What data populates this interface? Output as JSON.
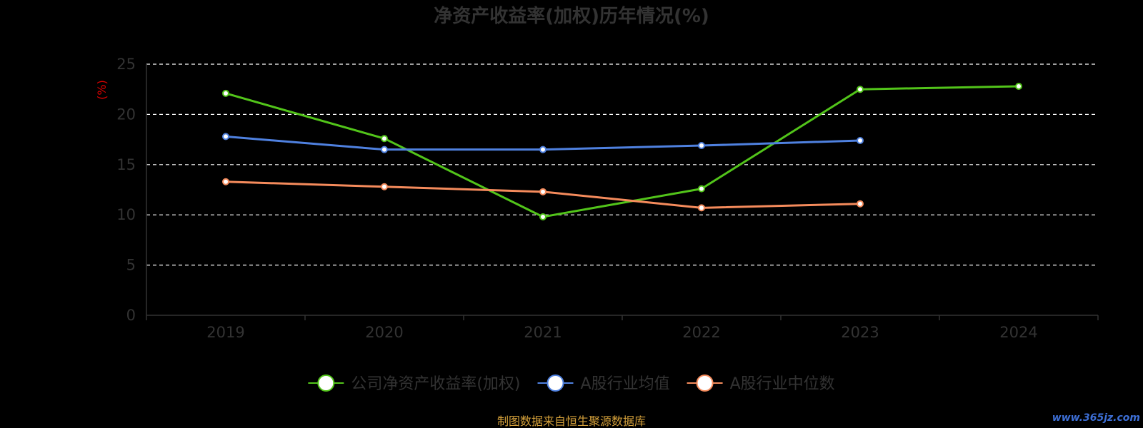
{
  "chart_data": {
    "type": "line",
    "title": "净资产收益率(加权)历年情况(%)",
    "ylabel": "(%)",
    "categories": [
      "2019",
      "2020",
      "2021",
      "2022",
      "2023",
      "2024"
    ],
    "ylim": [
      0,
      25
    ],
    "yticks": [
      0,
      5,
      10,
      15,
      20,
      25
    ],
    "grid": true,
    "legend_position": "bottom",
    "series": [
      {
        "name": "公司净资产收益率(加权)",
        "color": "#52c41a",
        "values": [
          22.1,
          17.6,
          9.8,
          12.6,
          22.5,
          22.8
        ]
      },
      {
        "name": "A股行业均值",
        "color": "#4f81e0",
        "values": [
          17.8,
          16.5,
          16.5,
          16.9,
          17.4,
          null
        ]
      },
      {
        "name": "A股行业中位数",
        "color": "#f58b5c",
        "values": [
          13.3,
          12.8,
          12.3,
          10.7,
          11.1,
          null
        ]
      }
    ]
  },
  "footer": {
    "source": "制图数据来自恒生聚源数据库",
    "watermark": "www.365jz.com"
  }
}
